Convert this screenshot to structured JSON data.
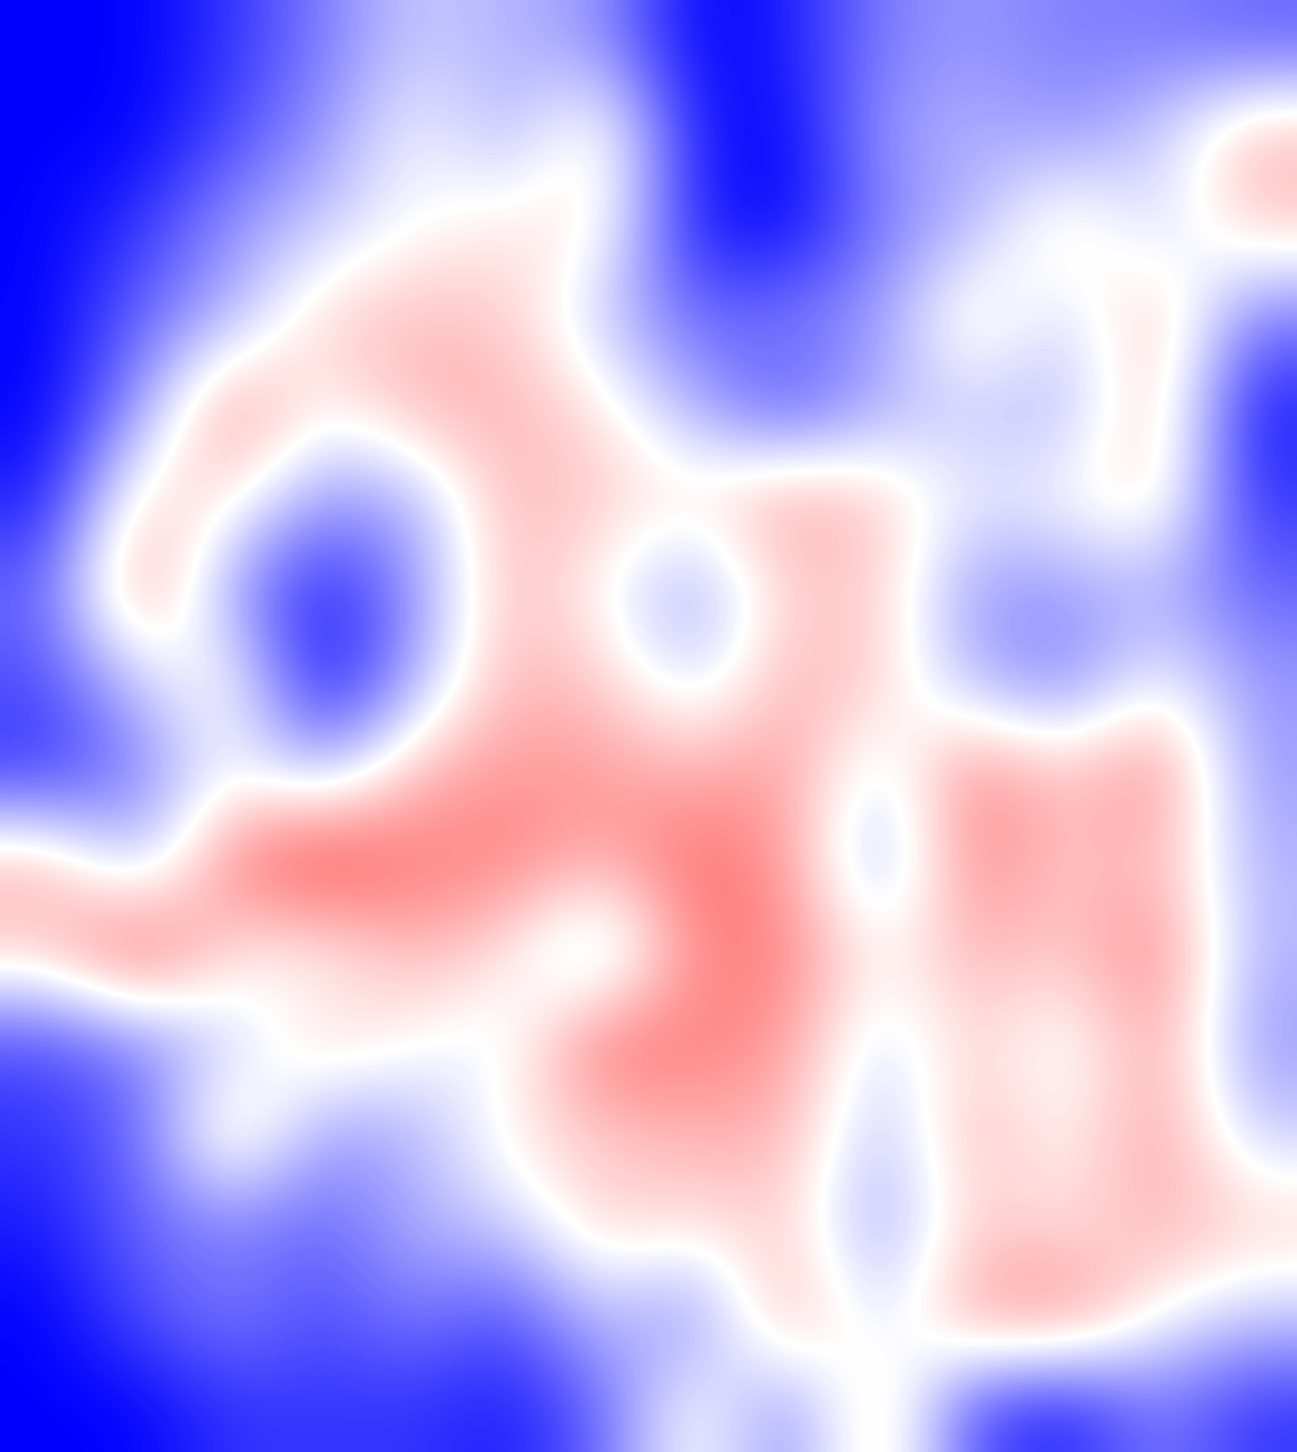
{
  "chart_data": {
    "type": "heatmap",
    "tick_labels": false,
    "color": "bwr",
    "color_range": [
      -1,
      1
    ],
    "cells": [
      [
        -1,
        -1,
        -0.8,
        -0.5,
        -0.2,
        -0.3,
        -0.4,
        -1,
        -0.9,
        -0.5,
        -0.4,
        -0.5,
        -0.5,
        -0.6
      ],
      [
        -1,
        -1,
        -0.7,
        -0.4,
        0.0,
        -0.3,
        0.2,
        -0.9,
        -1,
        -0.4,
        -0.3,
        -0.4,
        -0.2,
        0.3
      ],
      [
        -1,
        -0.8,
        -0.4,
        -0.2,
        0.0,
        0.1,
        0.1,
        -0.9,
        -1,
        -0.5,
        -0.3,
        0.2,
        -0.2,
        0.2
      ],
      [
        -1,
        -0.6,
        -0.3,
        0.2,
        0.25,
        0.2,
        -0.2,
        -0.6,
        -0.5,
        -0.4,
        0.2,
        -0.2,
        0.3,
        -0.5
      ],
      [
        -1,
        -0.4,
        0.5,
        0.0,
        0.3,
        0.3,
        0.1,
        -0.3,
        -0.7,
        -0.3,
        -0.2,
        -0.3,
        0.3,
        -0.9
      ],
      [
        -0.9,
        0.2,
        0.1,
        -0.4,
        -0.3,
        0.3,
        0.2,
        0.1,
        0.4,
        0.2,
        -0.1,
        0.0,
        0.2,
        -0.8
      ],
      [
        -0.6,
        0.5,
        -0.4,
        -0.9,
        -0.4,
        0.3,
        0.0,
        -0.4,
        0.2,
        0.2,
        -0.4,
        -0.4,
        -0.3,
        -0.6
      ],
      [
        -0.7,
        -0.2,
        0.1,
        -1,
        -0.3,
        0.3,
        0.2,
        -0.2,
        0.3,
        0.2,
        -0.3,
        -0.5,
        0.0,
        -0.4
      ],
      [
        -0.8,
        -0.5,
        0.0,
        -0.3,
        0.3,
        0.4,
        0.4,
        0.3,
        0.4,
        -0.2,
        0.5,
        0.2,
        0.5,
        -0.4
      ],
      [
        0.3,
        -0.3,
        0.5,
        0.8,
        0.5,
        0.5,
        0.3,
        0.6,
        0.4,
        -0.4,
        0.5,
        0.2,
        0.3,
        -0.3
      ],
      [
        0.2,
        0.7,
        0.1,
        0.0,
        0.3,
        0.1,
        -0.4,
        0.5,
        0.5,
        0.0,
        0.3,
        0.2,
        0.5,
        -0.3
      ],
      [
        -0.7,
        -0.5,
        -0.2,
        0.2,
        0.0,
        -0.1,
        0.6,
        0.5,
        0.4,
        -0.2,
        0.2,
        -0.1,
        0.4,
        -0.4
      ],
      [
        -0.8,
        -0.6,
        0.3,
        -0.4,
        -0.3,
        0.1,
        0.2,
        0.3,
        0.3,
        -0.3,
        0.3,
        0.0,
        0.4,
        -0.2
      ],
      [
        -0.9,
        -0.6,
        -0.5,
        -0.6,
        -0.3,
        -0.2,
        0.2,
        0.1,
        0.2,
        -0.4,
        0.2,
        0.1,
        0.3,
        0.2
      ],
      [
        -1,
        -0.7,
        -0.5,
        -0.7,
        -0.5,
        -0.7,
        -0.2,
        -0.5,
        0.4,
        -0.2,
        0.4,
        0.5,
        0.0,
        -0.2
      ],
      [
        -1,
        -1,
        -0.8,
        -0.8,
        -0.8,
        -0.9,
        -0.6,
        0.1,
        -0.5,
        0.3,
        -0.7,
        -0.9,
        -0.5,
        -0.8
      ]
    ]
  }
}
